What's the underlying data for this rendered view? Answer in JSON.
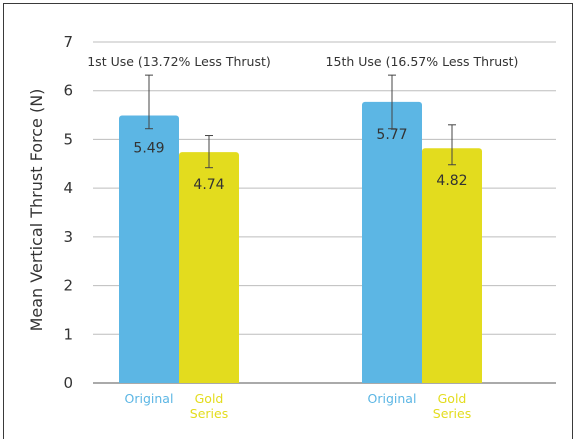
{
  "chart_data": {
    "type": "bar",
    "ylabel": "Mean Vertical Thrust Force (N)",
    "xlabel": "",
    "ylim": [
      0,
      7
    ],
    "yticks": [
      "0",
      "1",
      "2",
      "3",
      "4",
      "5",
      "6",
      "7"
    ],
    "grid": true,
    "groups": [
      {
        "annotation": "1st Use (13.72% Less Thrust)",
        "bars": [
          {
            "label": "Original",
            "value": 5.49,
            "value_label": "5.49",
            "err_low": 5.22,
            "err_high": 6.32
          },
          {
            "label": "Gold Series",
            "value": 4.74,
            "value_label": "4.74",
            "err_low": 4.42,
            "err_high": 5.08
          }
        ]
      },
      {
        "annotation": "15th Use (16.57% Less Thrust)",
        "bars": [
          {
            "label": "Original",
            "value": 5.77,
            "value_label": "5.77",
            "err_low": 5.22,
            "err_high": 6.32
          },
          {
            "label": "Gold Series",
            "value": 4.82,
            "value_label": "4.82",
            "err_low": 4.48,
            "err_high": 5.3
          }
        ]
      }
    ],
    "colors": {
      "Original": "#5cb6e4",
      "Gold Series": "#e3dc1e"
    }
  }
}
